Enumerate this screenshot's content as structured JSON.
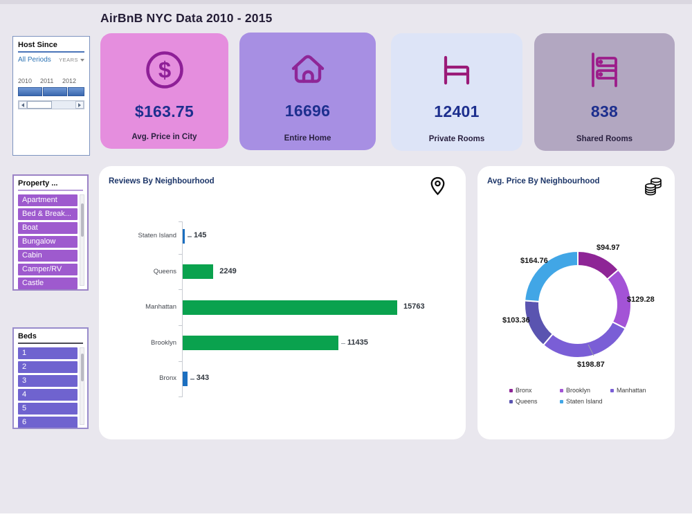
{
  "page": {
    "title": "AirBnB NYC Data 2010 - 2015"
  },
  "host_since": {
    "title": "Host Since",
    "range_label": "All Periods",
    "granularity": "YEARS",
    "years": [
      "2010",
      "2011",
      "2012"
    ]
  },
  "kpi_cards": [
    {
      "icon": "dollar-circle-icon",
      "value": "$163.75",
      "label": "Avg. Price in City",
      "bg": "#e58ede"
    },
    {
      "icon": "home-icon",
      "value": "16696",
      "label": "Entire Home",
      "bg": "#a78fe3"
    },
    {
      "icon": "bed-icon",
      "value": "12401",
      "label": "Private Rooms",
      "bg": "#dde4f7"
    },
    {
      "icon": "bunk-bed-icon",
      "value": "838",
      "label": "Shared Rooms",
      "bg": "#b2a7c1"
    }
  ],
  "property_filter": {
    "title": "Property ...",
    "items": [
      "Apartment",
      "Bed & Break...",
      "Boat",
      "Bungalow",
      "Cabin",
      "Camper/RV",
      "Castle"
    ],
    "item_color": "#9e5ace"
  },
  "beds_filter": {
    "title": "Beds",
    "items": [
      "1",
      "2",
      "3",
      "4",
      "5",
      "6"
    ],
    "item_color": "#6f63cf"
  },
  "chart_data": [
    {
      "type": "bar",
      "title": "Reviews By Neighbourhood",
      "orientation": "horizontal",
      "categories": [
        "Staten Island",
        "Queens",
        "Manhattan",
        "Brooklyn",
        "Bronx"
      ],
      "values": [
        145,
        2249,
        15763,
        11435,
        343
      ],
      "value_labels": [
        "145",
        "2249",
        "15763",
        "11435",
        "343"
      ],
      "bar_colors": [
        "#1b6fc0",
        "#0aa24e",
        "#0aa24e",
        "#0aa24e",
        "#1b6fc0"
      ],
      "xlim": [
        0,
        16000
      ],
      "grid": false,
      "corner_icon": "map-pin-icon"
    },
    {
      "type": "donut",
      "title": "Avg. Price By Neighbourhood",
      "categories": [
        "Bronx",
        "Brooklyn",
        "Manhattan",
        "Queens",
        "Staten Island"
      ],
      "values": [
        94.97,
        129.28,
        198.87,
        103.36,
        164.76
      ],
      "value_labels": [
        "$94.97",
        "$129.28",
        "$198.87",
        "$103.36",
        "$164.76"
      ],
      "colors": [
        "#8e2596",
        "#a353d6",
        "#7a5ed6",
        "#5a54b0",
        "#41a6e6"
      ],
      "legend_position": "bottom",
      "corner_icon": "coins-icon"
    }
  ]
}
